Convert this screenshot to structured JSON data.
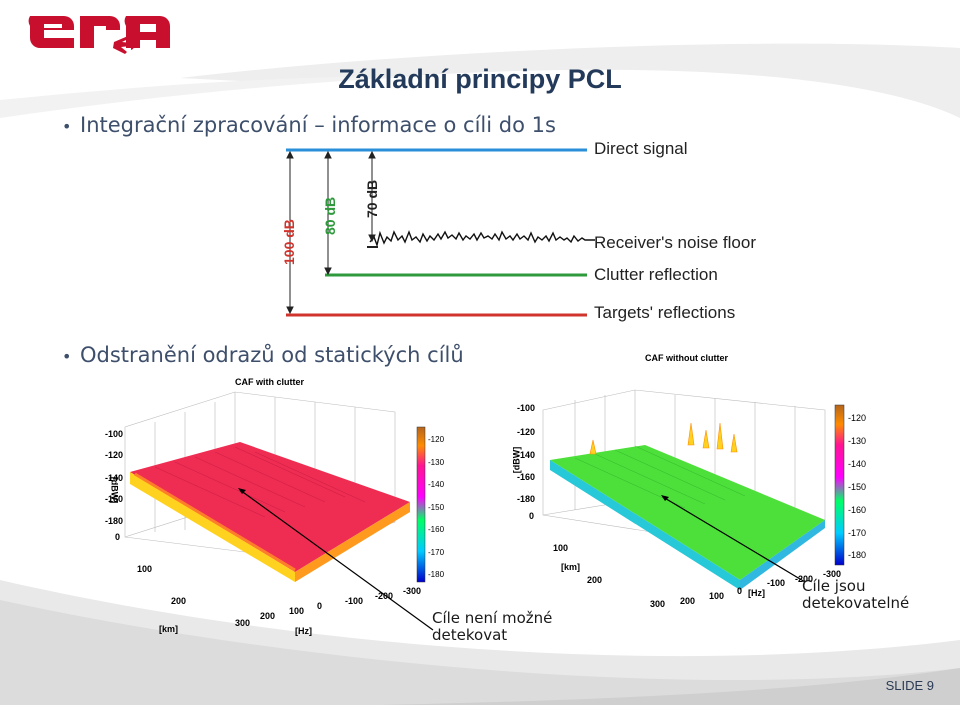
{
  "logo": {
    "text": "era"
  },
  "title": "Základní principy PCL",
  "bullets": [
    "Integrační zpracování – informace o cíli do 1s",
    "Odstranění odrazů od statických cílů"
  ],
  "diagram": {
    "lines": {
      "direct": "Direct signal",
      "noise": "Receiver's noise floor",
      "clutter": "Clutter reflection",
      "targets": "Targets' reflections"
    },
    "dims": {
      "d100": "100 dB",
      "d80": "80 dB",
      "d70": "70 dB"
    },
    "colors": {
      "blue": "#2a8fd8",
      "green": "#2e9a3c",
      "red": "#d0342c",
      "black": "#111111"
    }
  },
  "caf_left": {
    "title": "CAF with clutter",
    "zlabel": "[dBW]",
    "zticks": [
      "-100",
      "-120",
      "-140",
      "-160",
      "-180"
    ],
    "km_label": "[km]",
    "km_ticks": [
      "0",
      "100",
      "200",
      "300"
    ],
    "hz_label": "[Hz]",
    "hz_ticks": [
      "300",
      "200",
      "100",
      "0",
      "-100",
      "-200",
      "-300"
    ],
    "cbar_ticks": [
      "-120",
      "-130",
      "-140",
      "-150",
      "-160",
      "-170",
      "-180"
    ]
  },
  "caf_right": {
    "title": "CAF without clutter",
    "zlabel": "[dBW]",
    "zticks": [
      "-100",
      "-120",
      "-140",
      "-160",
      "-180",
      "0"
    ],
    "km_label": "[km]",
    "km_ticks": [
      "100",
      "200",
      "300"
    ],
    "hz_label": "[Hz]",
    "hz_ticks": [
      "300",
      "200",
      "100",
      "0",
      "-100",
      "-200",
      "-300"
    ],
    "cbar_ticks": [
      "-120",
      "-130",
      "-140",
      "-150",
      "-160",
      "-170",
      "-180"
    ]
  },
  "notes": {
    "left": [
      "Cíle není možné",
      "detekovat"
    ],
    "right": [
      "Cíle jsou",
      "detekovatelné"
    ]
  },
  "slide_number": "SLIDE 9"
}
